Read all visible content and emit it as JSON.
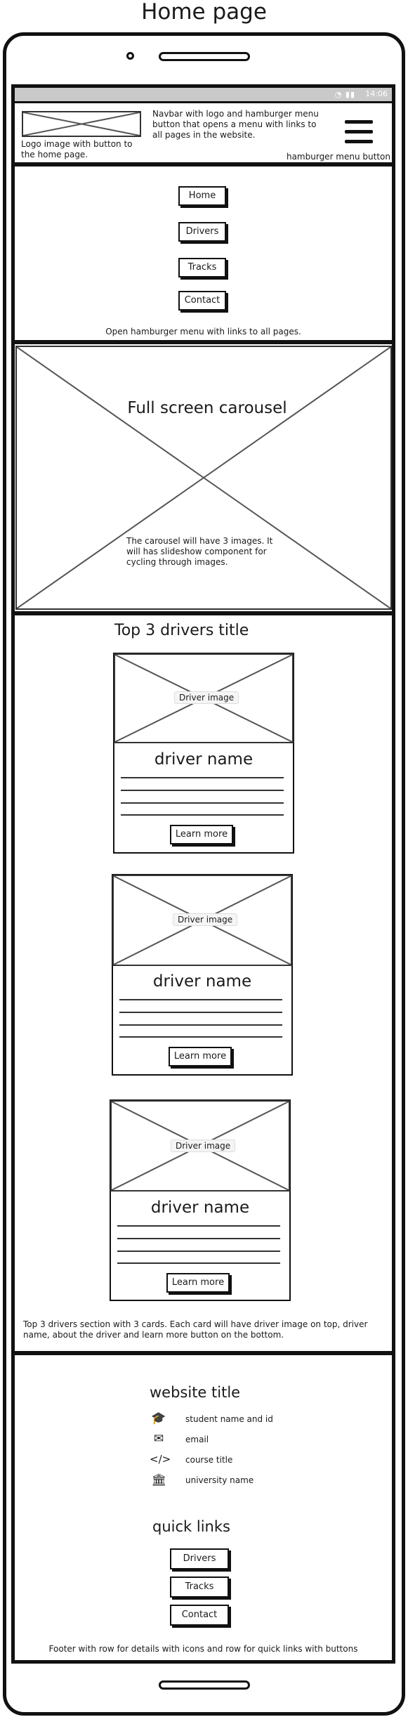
{
  "page_title": "Home page",
  "status_bar": {
    "time": "14:06"
  },
  "navbar": {
    "logo_note": "Logo image with button to the home page.",
    "description": "Navbar with logo and hamburger menu button that opens a menu with links to all pages in the website.",
    "hamburger_note": "hamburger menu button"
  },
  "menu": {
    "items": [
      "Home",
      "Drivers",
      "Tracks",
      "Contact"
    ],
    "note": "Open hamburger menu with links to all pages."
  },
  "carousel": {
    "title": "Full screen carousel",
    "note": "The carousel will have 3 images. It will has slideshow component for cycling through images."
  },
  "drivers": {
    "title": "Top 3 drivers title",
    "cards": [
      {
        "image_label": "Driver image",
        "name": "driver name",
        "button": "Learn more"
      },
      {
        "image_label": "Driver image",
        "name": "driver name",
        "button": "Learn more"
      },
      {
        "image_label": "Driver image",
        "name": "driver name",
        "button": "Learn more"
      }
    ],
    "note": "Top 3 drivers section with 3 cards. Each card will have driver image on top, driver name, about the driver and learn more button on the bottom."
  },
  "footer": {
    "title": "website title",
    "details": [
      {
        "icon": "graduation-cap-icon",
        "text": "student name and id"
      },
      {
        "icon": "envelope-icon",
        "text": "email"
      },
      {
        "icon": "code-icon",
        "text": "course title"
      },
      {
        "icon": "university-icon",
        "text": "university name"
      }
    ],
    "quick_links_title": "quick links",
    "quick_links": [
      "Drivers",
      "Tracks",
      "Contact"
    ],
    "note": "Footer with row for details with icons and row for quick links with buttons"
  }
}
